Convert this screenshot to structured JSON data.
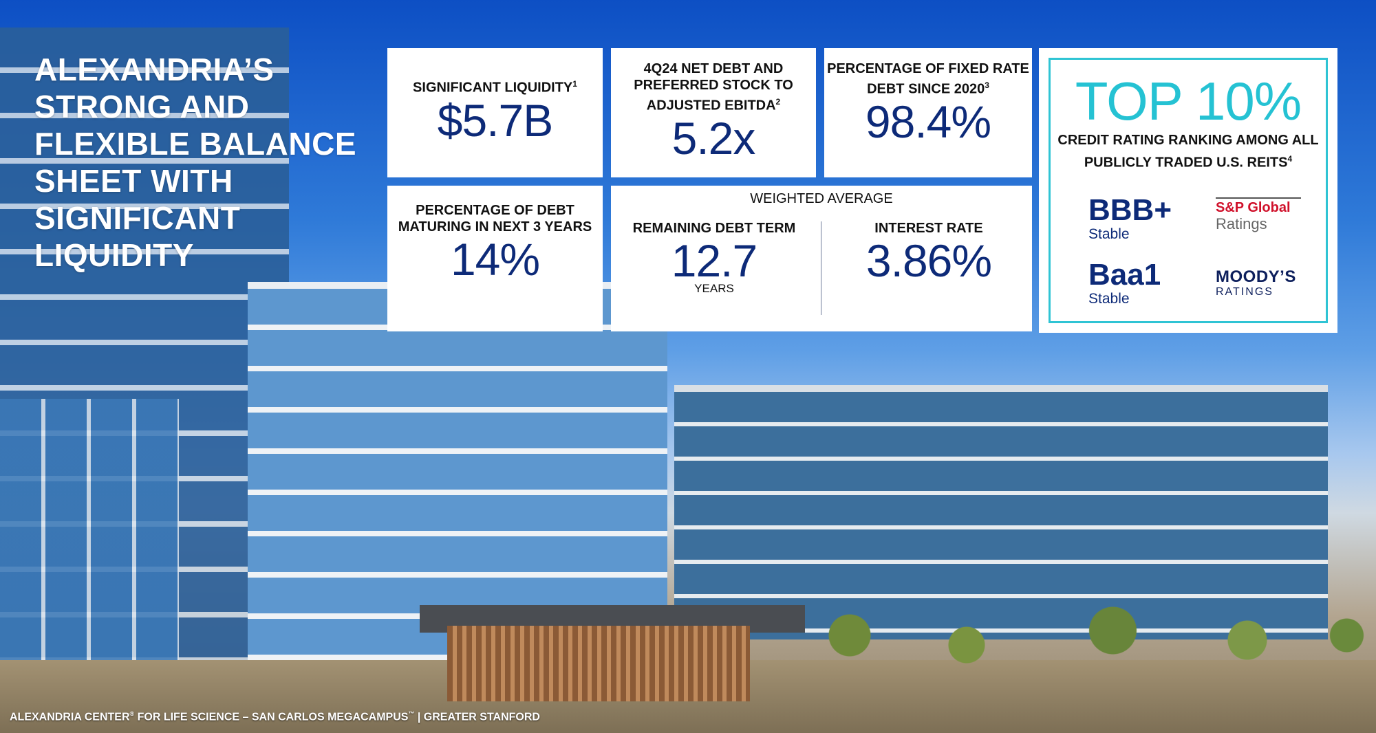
{
  "title": "ALEXANDRIA’S STRONG AND FLEXIBLE BALANCE SHEET WITH SIGNIFICANT LIQUIDITY",
  "liquidity": {
    "label": "SIGNIFICANT LIQUIDITY",
    "footnote": "1",
    "value": "$5.7B"
  },
  "net_debt": {
    "label": "4Q24 NET DEBT AND PREFERRED STOCK TO ADJUSTED EBITDA",
    "footnote": "2",
    "value": "5.2x"
  },
  "fixed_rate": {
    "label": "PERCENTAGE OF FIXED RATE DEBT SINCE 2020",
    "footnote": "3",
    "value": "98.4%"
  },
  "maturing": {
    "label": "PERCENTAGE OF DEBT MATURING IN NEXT 3 YEARS",
    "value": "14%"
  },
  "weighted": {
    "heading": "WEIGHTED AVERAGE",
    "term_label": "REMAINING DEBT TERM",
    "term_value": "12.7",
    "term_unit": "YEARS",
    "rate_label": "INTEREST RATE",
    "rate_value": "3.86%"
  },
  "ranking": {
    "headline": "TOP 10%",
    "text": "CREDIT RATING RANKING AMONG ALL PUBLICLY TRADED U.S. REITS",
    "footnote": "4",
    "sp_grade": "BBB+",
    "sp_outlook": "Stable",
    "sp_name": "S&P Global",
    "sp_sub": "Ratings",
    "moodys_grade": "Baa1",
    "moodys_outlook": "Stable",
    "moodys_name": "MOODY’S",
    "moodys_sub": "RATINGS"
  },
  "caption": {
    "part1": "ALEXANDRIA CENTER",
    "reg": "®",
    "part2": " FOR LIFE SCIENCE – SAN CARLOS MEGACAMPUS",
    "tm": "™",
    "part3": " | GREATER STANFORD"
  },
  "colors": {
    "navy": "#0d2a78",
    "teal": "#25c2d3",
    "sp_red": "#d0102a"
  }
}
